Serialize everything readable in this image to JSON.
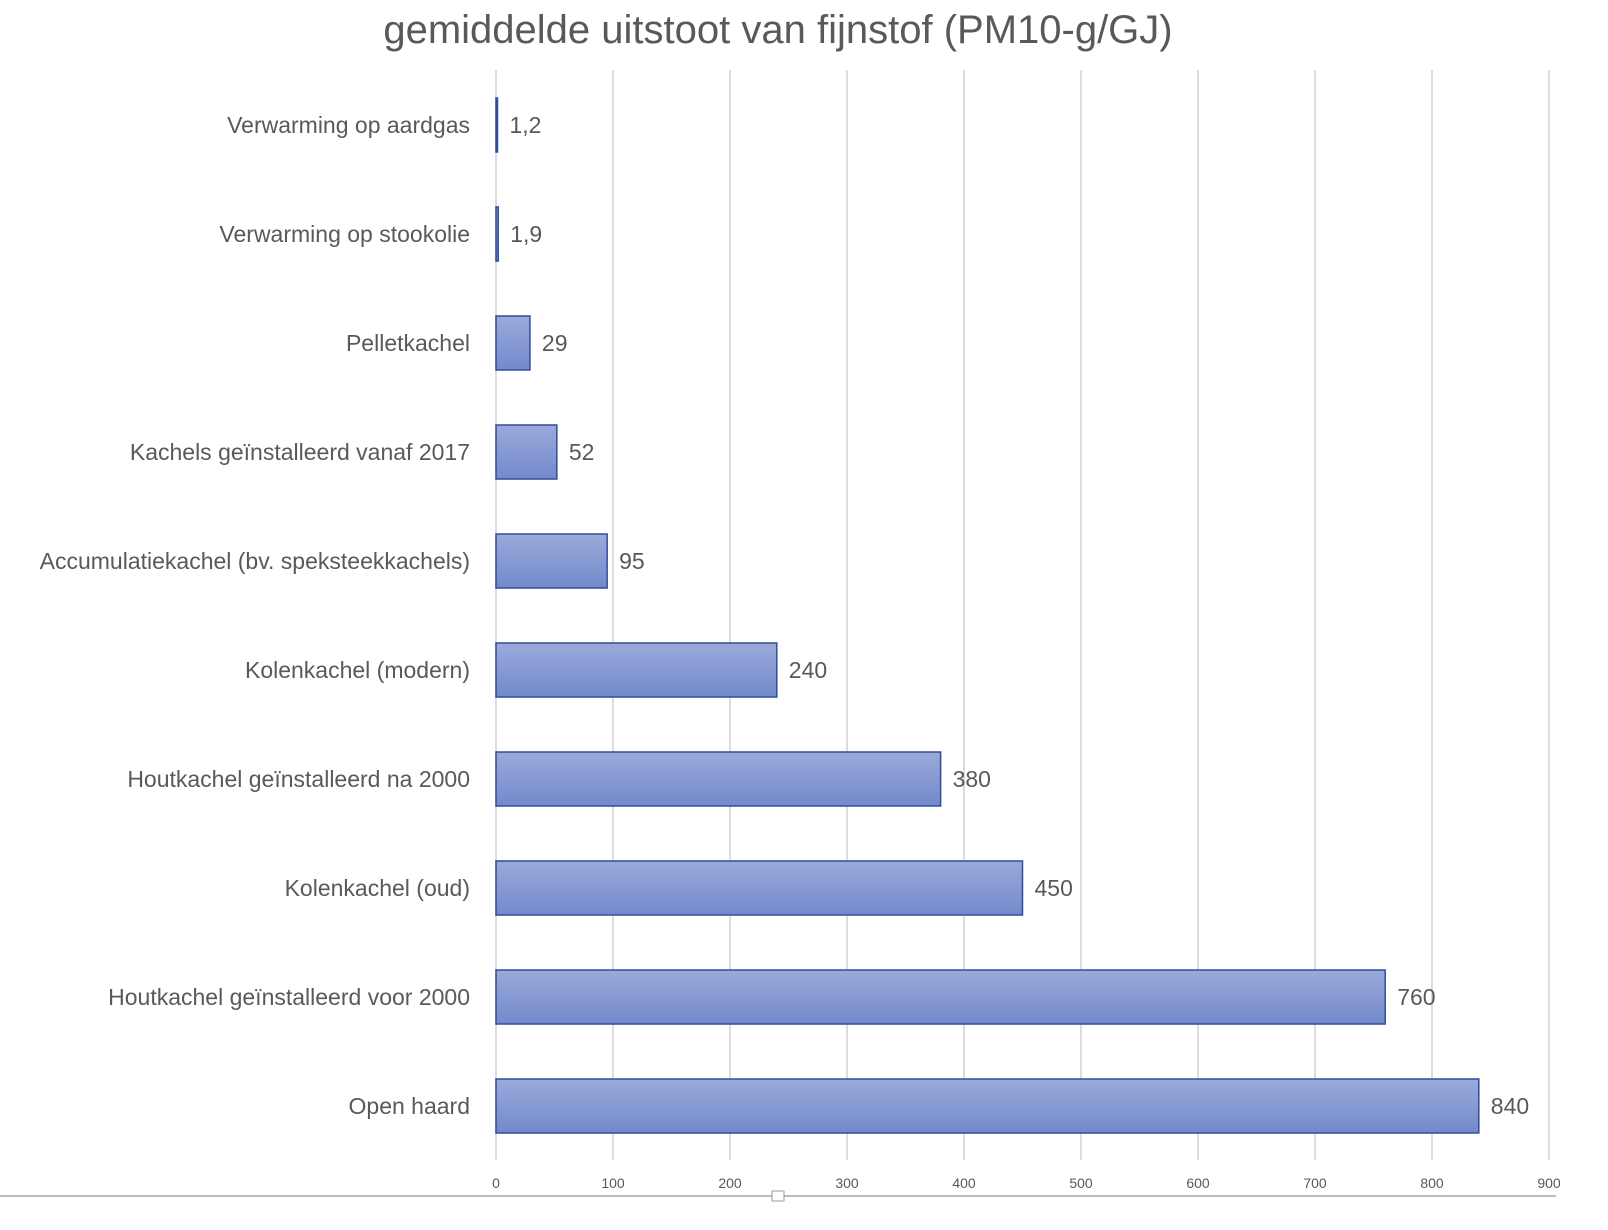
{
  "chart_data": {
    "type": "bar",
    "orientation": "horizontal",
    "title": "gemiddelde uitstoot van fijnstof (PM10-g/GJ)",
    "xlabel": "",
    "ylabel": "",
    "xlim": [
      0,
      900
    ],
    "grid": true,
    "categories": [
      "Verwarming op aardgas",
      "Verwarming op stookolie",
      "Pelletkachel",
      "Kachels geïnstalleerd vanaf 2017",
      "Accumulatiekachel (bv. speksteekkachels)",
      "Kolenkachel (modern)",
      "Houtkachel geïnstalleerd na 2000",
      "Kolenkachel (oud)",
      "Houtkachel geïnstalleerd voor 2000",
      "Open haard"
    ],
    "values": [
      1.2,
      1.9,
      29,
      52,
      95,
      240,
      380,
      450,
      760,
      840
    ],
    "value_labels": [
      "1,2",
      "1,9",
      "29",
      "52",
      "95",
      "240",
      "380",
      "450",
      "760",
      "840"
    ],
    "ticks": [
      "0",
      "100",
      "200",
      "300",
      "400",
      "500",
      "600",
      "700",
      "800",
      "900"
    ],
    "tick_values": [
      0,
      100,
      200,
      300,
      400,
      500,
      600,
      700,
      800,
      900
    ],
    "colors": {
      "bar_top": "#9aaad9",
      "bar_bottom": "#7389cc",
      "bar_border": "#2f4d9e",
      "grid": "#d0d0d0",
      "text": "#595959"
    }
  }
}
